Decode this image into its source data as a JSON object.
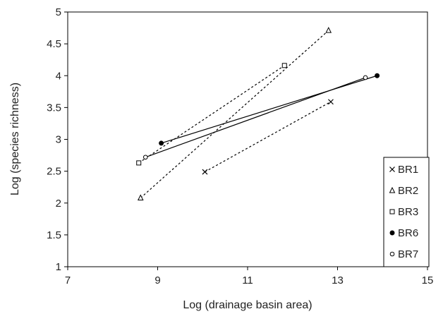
{
  "chart_data": {
    "type": "scatter",
    "xlabel": "Log (drainage basin area)",
    "ylabel": "Log (species richness)",
    "xlim": [
      7,
      15
    ],
    "ylim": [
      1,
      5
    ],
    "xticks": [
      "7",
      "9",
      "11",
      "13",
      "15"
    ],
    "yticks": [
      "1",
      "1.5",
      "2",
      "2.5",
      "3",
      "3.5",
      "4",
      "4.5",
      "5"
    ],
    "grid": false,
    "legend_position": "right",
    "series": [
      {
        "name": "BR1",
        "marker": "x",
        "line": "dotted",
        "points": [
          {
            "x": 10.05,
            "y": 2.49
          },
          {
            "x": 12.85,
            "y": 3.59
          }
        ]
      },
      {
        "name": "BR2",
        "marker": "triangle-open",
        "line": "dotted",
        "points": [
          {
            "x": 8.62,
            "y": 2.08
          },
          {
            "x": 12.8,
            "y": 4.71
          }
        ]
      },
      {
        "name": "BR3",
        "marker": "square-open",
        "line": "dotted",
        "points": [
          {
            "x": 8.58,
            "y": 2.63
          },
          {
            "x": 11.82,
            "y": 4.16
          }
        ]
      },
      {
        "name": "BR6",
        "marker": "circle-filled",
        "line": "solid",
        "points": [
          {
            "x": 9.08,
            "y": 2.94
          },
          {
            "x": 13.88,
            "y": 4.0
          }
        ]
      },
      {
        "name": "BR7",
        "marker": "circle-open",
        "line": "solid",
        "points": [
          {
            "x": 8.73,
            "y": 2.72
          },
          {
            "x": 13.62,
            "y": 3.97
          }
        ]
      }
    ]
  }
}
